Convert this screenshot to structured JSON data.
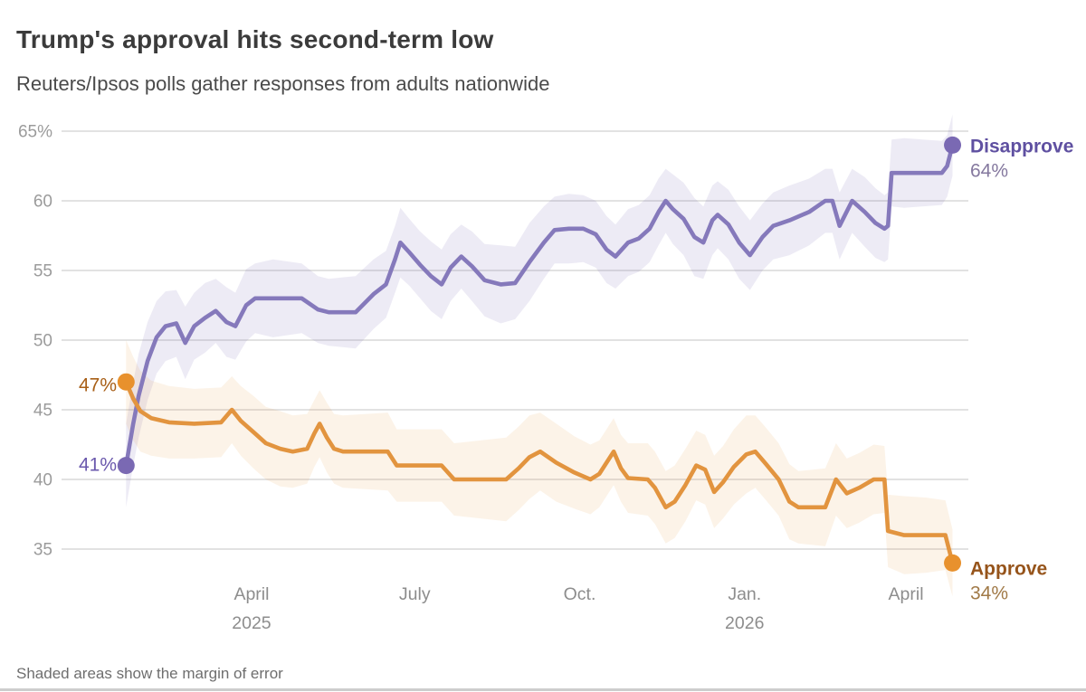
{
  "header": {
    "title": "Trump's approval hits second-term low",
    "subtitle": "Reuters/Ipsos polls gather responses from adults nationwide"
  },
  "footnote": "Shaded areas show the margin of error",
  "chart_data": {
    "type": "line",
    "title": "Trump's approval hits second-term low",
    "subtitle": "Reuters/Ipsos polls gather responses from adults nationwide",
    "note": "Shaded areas show the margin of error",
    "grid": "horizontal-only",
    "legend": "inline-end-labels",
    "x_unit": "days since first poll (late January 2025)",
    "y_unit": "percent of adults",
    "y_range": [
      33,
      66.5
    ],
    "x_axis_ticks": [
      {
        "label": "April",
        "sublabel": "2025",
        "day": 70
      },
      {
        "label": "July",
        "sublabel": "",
        "day": 161
      },
      {
        "label": "Oct.",
        "sublabel": "",
        "day": 253
      },
      {
        "label": "Jan.",
        "sublabel": "2026",
        "day": 345
      },
      {
        "label": "April",
        "sublabel": "",
        "day": 435
      }
    ],
    "y_axis_ticks": [
      {
        "label": "65%",
        "value": 65
      },
      {
        "label": "60",
        "value": 60
      },
      {
        "label": "55",
        "value": 55
      },
      {
        "label": "50",
        "value": 50
      },
      {
        "label": "45",
        "value": 45
      },
      {
        "label": "40",
        "value": 40
      },
      {
        "label": "35",
        "value": 35
      }
    ],
    "series": [
      {
        "name": "Disapprove",
        "start_label": "41%",
        "end_label": "64%",
        "start_value": 41,
        "end_value": 64,
        "color": "#8579bb",
        "dot_color": "#7a69b3",
        "name_color": "#5f50a1",
        "value_color": "#85799f",
        "start_label_color": "#6b59ad",
        "band_color": "rgba(128,115,185,0.14)",
        "points_format": [
          "day",
          "percent",
          "margin_of_error"
        ],
        "points": [
          [
            0,
            41,
            3
          ],
          [
            4,
            44,
            3
          ],
          [
            7,
            46,
            3
          ],
          [
            12,
            48.5,
            2.8
          ],
          [
            17,
            50.2,
            2.6
          ],
          [
            22,
            51,
            2.5
          ],
          [
            28,
            51.2,
            2.4
          ],
          [
            33,
            49.8,
            2.6
          ],
          [
            38,
            51,
            2.4
          ],
          [
            44,
            51.6,
            2.5
          ],
          [
            50,
            52.1,
            2.3
          ],
          [
            56,
            51.3,
            2.5
          ],
          [
            61,
            51,
            2.4
          ],
          [
            67,
            52.5,
            2.6
          ],
          [
            72,
            53,
            2.5
          ],
          [
            82,
            53,
            2.8
          ],
          [
            98,
            53,
            2.5
          ],
          [
            107,
            52.2,
            2.4
          ],
          [
            113,
            52,
            2.4
          ],
          [
            128,
            52,
            2.6
          ],
          [
            138,
            53.3,
            2.5
          ],
          [
            145,
            54,
            2.4
          ],
          [
            150,
            55.8,
            2.4
          ],
          [
            153,
            57,
            2.5
          ],
          [
            158,
            56.3,
            2.4
          ],
          [
            164,
            55.4,
            2.4
          ],
          [
            170,
            54.6,
            2.5
          ],
          [
            176,
            54,
            2.5
          ],
          [
            181,
            55.2,
            2.4
          ],
          [
            187,
            56,
            2.3
          ],
          [
            193,
            55.3,
            2.5
          ],
          [
            200,
            54.3,
            2.6
          ],
          [
            209,
            54,
            2.8
          ],
          [
            217,
            54.1,
            2.6
          ],
          [
            225,
            55.6,
            2.8
          ],
          [
            233,
            57,
            2.6
          ],
          [
            239,
            57.9,
            2.4
          ],
          [
            247,
            58,
            2.5
          ],
          [
            255,
            58,
            2.4
          ],
          [
            262,
            57.6,
            2.4
          ],
          [
            268,
            56.5,
            2.4
          ],
          [
            273,
            56,
            2.3
          ],
          [
            280,
            57,
            2.4
          ],
          [
            286,
            57.3,
            2.4
          ],
          [
            292,
            58,
            2.4
          ],
          [
            297,
            59.2,
            2.4
          ],
          [
            301,
            60,
            2.3
          ],
          [
            305,
            59.4,
            2.5
          ],
          [
            311,
            58.7,
            2.6
          ],
          [
            317,
            57.4,
            2.8
          ],
          [
            322,
            57,
            2.6
          ],
          [
            327,
            58.6,
            2.5
          ],
          [
            330,
            59,
            2.4
          ],
          [
            336,
            58.3,
            2.5
          ],
          [
            342,
            57,
            2.6
          ],
          [
            348,
            56.1,
            2.5
          ],
          [
            355,
            57.4,
            2.4
          ],
          [
            361,
            58.2,
            2.4
          ],
          [
            370,
            58.6,
            2.5
          ],
          [
            381,
            59.2,
            2.4
          ],
          [
            390,
            60,
            2.3
          ],
          [
            394,
            60,
            2.3
          ],
          [
            398,
            58.2,
            2.4
          ],
          [
            405,
            60,
            2.3
          ],
          [
            412,
            59.2,
            2.5
          ],
          [
            418,
            58.4,
            2.5
          ],
          [
            423,
            58,
            2.4
          ],
          [
            425,
            58.2,
            2.4
          ],
          [
            427,
            62,
            2.4
          ],
          [
            434,
            62,
            2.5
          ],
          [
            444,
            62,
            2.4
          ],
          [
            455,
            62,
            2.3
          ],
          [
            458,
            62.5,
            2.2
          ],
          [
            461,
            64,
            2.2
          ]
        ]
      },
      {
        "name": "Approve",
        "start_label": "47%",
        "end_label": "34%",
        "start_value": 47,
        "end_value": 34,
        "color": "#e2943f",
        "dot_color": "#e8912d",
        "name_color": "#96541b",
        "value_color": "#a17a48",
        "start_label_color": "#a85f17",
        "band_color": "rgba(232,145,45,0.11)",
        "points_format": [
          "day",
          "percent",
          "margin_of_error"
        ],
        "points": [
          [
            0,
            47,
            3
          ],
          [
            4,
            45.8,
            3
          ],
          [
            8,
            44.9,
            2.9
          ],
          [
            14,
            44.4,
            2.7
          ],
          [
            24,
            44.1,
            2.6
          ],
          [
            38,
            44,
            2.5
          ],
          [
            53,
            44.1,
            2.5
          ],
          [
            59,
            45,
            2.4
          ],
          [
            64,
            44.2,
            2.5
          ],
          [
            71,
            43.4,
            2.6
          ],
          [
            78,
            42.6,
            2.6
          ],
          [
            86,
            42.2,
            2.7
          ],
          [
            93,
            42,
            2.6
          ],
          [
            101,
            42.2,
            2.5
          ],
          [
            105,
            43.3,
            2.4
          ],
          [
            108,
            44,
            2.4
          ],
          [
            112,
            43,
            2.5
          ],
          [
            116,
            42.2,
            2.5
          ],
          [
            121,
            42,
            2.6
          ],
          [
            146,
            42,
            2.8
          ],
          [
            151,
            41,
            2.6
          ],
          [
            176,
            41,
            2.6
          ],
          [
            183,
            40,
            2.6
          ],
          [
            212,
            40,
            3
          ],
          [
            219,
            40.8,
            3
          ],
          [
            225,
            41.6,
            3
          ],
          [
            231,
            42,
            2.8
          ],
          [
            240,
            41.2,
            2.8
          ],
          [
            250,
            40.5,
            2.6
          ],
          [
            259,
            40,
            2.5
          ],
          [
            264,
            40.4,
            2.4
          ],
          [
            272,
            42,
            2.4
          ],
          [
            276,
            40.8,
            2.4
          ],
          [
            280,
            40.1,
            2.5
          ],
          [
            291,
            40,
            2.6
          ],
          [
            295,
            39.4,
            2.6
          ],
          [
            301,
            38,
            2.6
          ],
          [
            306,
            38.4,
            2.6
          ],
          [
            312,
            39.6,
            2.6
          ],
          [
            318,
            41,
            2.5
          ],
          [
            323,
            40.7,
            2.5
          ],
          [
            328,
            39.1,
            2.6
          ],
          [
            333,
            39.8,
            2.6
          ],
          [
            339,
            40.9,
            2.7
          ],
          [
            346,
            41.8,
            2.8
          ],
          [
            351,
            42,
            2.6
          ],
          [
            357,
            41.1,
            2.6
          ],
          [
            364,
            40,
            2.6
          ],
          [
            370,
            38.4,
            2.7
          ],
          [
            375,
            38,
            2.6
          ],
          [
            390,
            38,
            2.8
          ],
          [
            396,
            40,
            2.6
          ],
          [
            402,
            39,
            2.5
          ],
          [
            409,
            39.4,
            2.5
          ],
          [
            417,
            40,
            2.5
          ],
          [
            423,
            40,
            2.4
          ],
          [
            425,
            36.3,
            2.6
          ],
          [
            434,
            36,
            2.8
          ],
          [
            446,
            36,
            2.7
          ],
          [
            457,
            36,
            2.5
          ],
          [
            461,
            34,
            2.4
          ]
        ]
      }
    ]
  }
}
